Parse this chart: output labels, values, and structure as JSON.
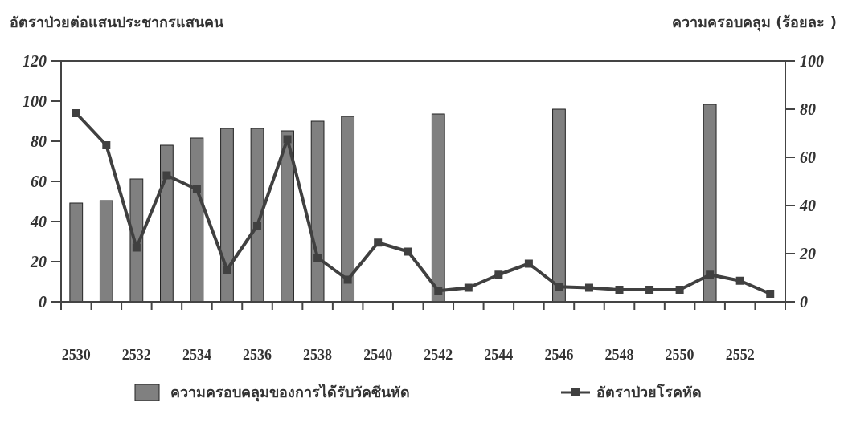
{
  "chart_data": {
    "type": "bar",
    "ylabel": "อัตราป่วยต่อแสนประชากรแสนคน",
    "y2label": "ความครอบคลุม (ร้อยละ )",
    "categories": [
      "2530",
      null,
      "2532",
      null,
      "2534",
      null,
      "2536",
      null,
      "2538",
      null,
      "2540",
      null,
      "2542",
      null,
      "2544",
      null,
      "2546",
      null,
      "2548",
      null,
      "2550",
      null,
      "2552",
      null
    ],
    "series": [
      {
        "name": "ความครอบคลุมของการได้รับวัคซีนหัด",
        "axis": "y2",
        "color": "#808080",
        "values": [
          41,
          42,
          51,
          65,
          68,
          72,
          72,
          71,
          75,
          77,
          null,
          null,
          78,
          null,
          null,
          null,
          80,
          null,
          null,
          null,
          null,
          82,
          null,
          null
        ]
      },
      {
        "name": "อัตราป่วยโรคหัด",
        "type": "line",
        "axis": "y",
        "color": "#404040",
        "values": [
          94,
          78,
          27,
          63,
          56,
          16,
          38,
          81,
          22,
          11,
          29.5,
          25,
          5.5,
          7,
          13.5,
          19,
          7.5,
          7,
          6,
          6,
          6,
          13.5,
          10.5,
          4
        ]
      }
    ],
    "ylim": [
      0,
      120
    ],
    "yticks": [
      0,
      20,
      40,
      60,
      80,
      100,
      120
    ],
    "y2lim": [
      0,
      100
    ],
    "y2ticks": [
      0,
      20,
      40,
      60,
      80,
      100
    ],
    "marker": "square",
    "line_style": "solid",
    "grid": false,
    "legend": "bottom"
  }
}
